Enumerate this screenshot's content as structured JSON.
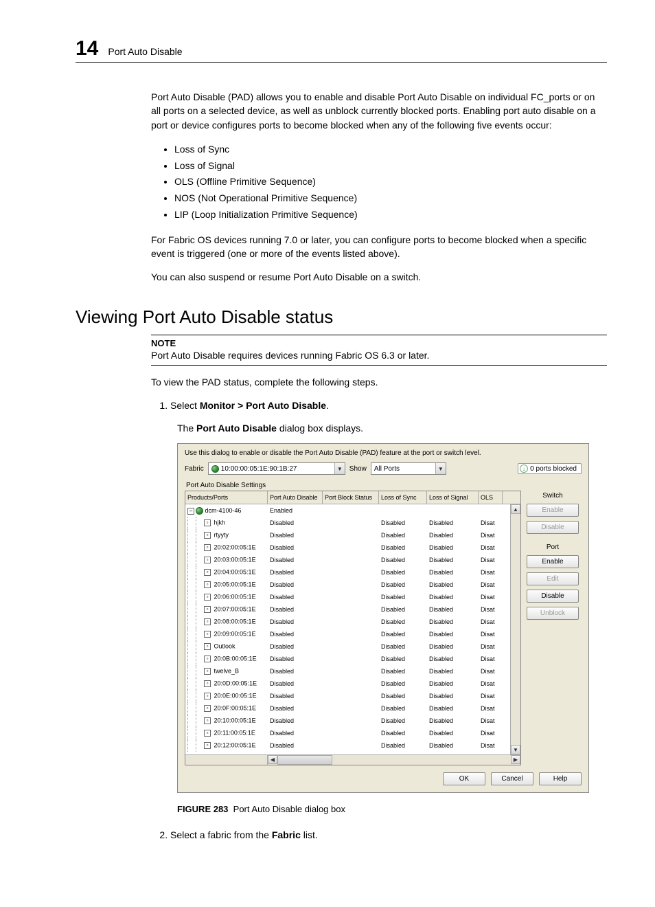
{
  "header": {
    "chapter": "14",
    "title": "Port Auto Disable"
  },
  "intro": "Port Auto Disable (PAD) allows you to enable and disable Port Auto Disable on individual FC_ports or on all ports on a selected device, as well as unblock currently blocked ports. Enabling port auto disable on a port or device configures ports to become blocked when any of the following five events occur:",
  "bullets": [
    "Loss of Sync",
    "Loss of Signal",
    "OLS (Offline Primitive Sequence)",
    "NOS (Not Operational Primitive Sequence)",
    "LIP (Loop Initialization Primitive Sequence)"
  ],
  "para2": "For Fabric OS devices running 7.0 or later, you can configure ports to become blocked when a specific event is triggered (one or more of the events listed above).",
  "para3": "You can also suspend or resume Port Auto Disable on a switch.",
  "section_title": "Viewing Port Auto Disable status",
  "note_label": "NOTE",
  "note_text": "Port Auto Disable requires devices running Fabric OS 6.3 or later.",
  "para4": "To view the PAD status, complete the following steps.",
  "step1_pre": "Select ",
  "step1_bold": "Monitor > Port Auto Disable",
  "step1_post": ".",
  "step1_sub_pre": "The ",
  "step1_sub_bold": "Port Auto Disable",
  "step1_sub_post": " dialog box displays.",
  "step2_pre": "Select a fabric from the ",
  "step2_bold": "Fabric",
  "step2_post": " list.",
  "figure_label": "FIGURE 283",
  "figure_caption": "Port Auto Disable dialog box",
  "dialog": {
    "hint": "Use this dialog to enable or disable the Port Auto Disable (PAD) feature at the port or switch level.",
    "fabric_label": "Fabric",
    "fabric_value": "10:00:00:05:1E:90:1B:27",
    "show_label": "Show",
    "show_value": "All Ports",
    "ports_blocked": "0 ports blocked",
    "panel_title": "Port Auto Disable Settings",
    "columns": [
      "Products/Ports",
      "Port Auto Disable",
      "Port Block Status",
      "Loss of Sync",
      "Loss of Signal",
      "OLS"
    ],
    "root": {
      "name": "dcm-4100-46",
      "pad": "Enabled"
    },
    "rows": [
      {
        "name": "hjkh",
        "pad": "Disabled"
      },
      {
        "name": "rtyyty",
        "pad": "Disabled"
      },
      {
        "name": "20:02:00:05:1E",
        "pad": "Disabled",
        "merged": true
      },
      {
        "name": "20:03:00:05:1E",
        "pad": "Disabled",
        "merged": true
      },
      {
        "name": "20:04:00:05:1E",
        "pad": "Disabled",
        "merged": true
      },
      {
        "name": "20:05:00:05:1E",
        "pad": "Disabled",
        "merged": true
      },
      {
        "name": "20:06:00:05:1E",
        "pad": "Disabled",
        "merged": true
      },
      {
        "name": "20:07:00:05:1E",
        "pad": "Disabled",
        "merged": true
      },
      {
        "name": "20:08:00:05:1E",
        "pad": "Disabled",
        "merged": true
      },
      {
        "name": "20:09:00:05:1E",
        "pad": "Disabled",
        "merged": true
      },
      {
        "name": "Outlook",
        "pad": "Disabled"
      },
      {
        "name": "20:0B:00:05:1E",
        "pad": "Disabled",
        "merged": true
      },
      {
        "name": "twelve_B",
        "pad": "Disabled"
      },
      {
        "name": "20:0D:00:05:1E",
        "pad": "Disabled",
        "merged": true
      },
      {
        "name": "20:0E:00:05:1E",
        "pad": "Disabled",
        "merged": true
      },
      {
        "name": "20:0F:00:05:1E",
        "pad": "Disabled",
        "merged": true
      },
      {
        "name": "20:10:00:05:1E",
        "pad": "Disabled",
        "merged": true
      },
      {
        "name": "20:11:00:05:1E",
        "pad": "Disabled",
        "merged": true
      },
      {
        "name": "20:12:00:05:1E",
        "pad": "Disabled",
        "merged": true
      }
    ],
    "cell_disabled": "Disabled",
    "cell_disat": "Disat",
    "side": {
      "switch_label": "Switch",
      "switch_enable": "Enable",
      "switch_disable": "Disable",
      "port_label": "Port",
      "port_enable": "Enable",
      "port_edit": "Edit",
      "port_disable": "Disable",
      "port_unblock": "Unblock"
    },
    "buttons": {
      "ok": "OK",
      "cancel": "Cancel",
      "help": "Help"
    }
  }
}
